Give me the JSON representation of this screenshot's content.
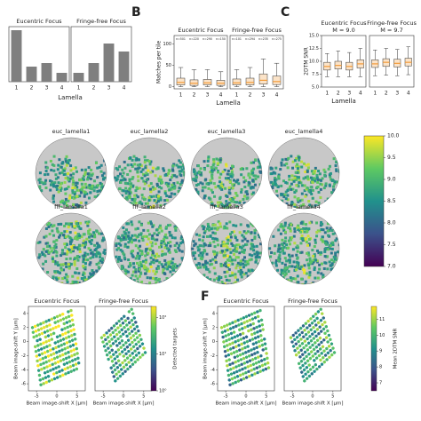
{
  "panel_letters": [
    "B",
    "C",
    "F"
  ],
  "chart_data": [
    {
      "type": "bar",
      "title": "Eucentric Focus",
      "xlabel": "Lamella",
      "categories": [
        "1",
        "2",
        "3",
        "4"
      ],
      "values": [
        58,
        17,
        21,
        10
      ],
      "color": "#7f7f7f",
      "ylim": [
        0,
        62
      ]
    },
    {
      "type": "bar",
      "title": "Fringe-free Focus",
      "categories": [
        "1",
        "2",
        "3",
        "4"
      ],
      "values": [
        10,
        21,
        43,
        34
      ],
      "color": "#7f7f7f",
      "ylim": [
        0,
        62
      ]
    },
    {
      "type": "box",
      "title": "Eucentric Focus",
      "ylabel": "Matches per tile",
      "xlabel": "Lamella",
      "categories": [
        "1",
        "2",
        "3",
        "4"
      ],
      "annotations": [
        "n=501",
        "n=220",
        "n=290",
        "n=150"
      ],
      "median": [
        10,
        8,
        9,
        8
      ],
      "q1": [
        4,
        3,
        4,
        3
      ],
      "q3": [
        20,
        16,
        17,
        15
      ],
      "whisker_low": [
        0,
        0,
        0,
        0
      ],
      "whisker_high": [
        45,
        40,
        40,
        35
      ],
      "color": "#fbe3c8",
      "median_color": "#f29b3a",
      "ylim": [
        -5,
        120
      ],
      "yticks": [
        0,
        50,
        100
      ]
    },
    {
      "type": "box",
      "title": "Fringe-free Focus",
      "categories": [
        "1",
        "2",
        "3",
        "4"
      ],
      "annotations": [
        "n=101",
        "n=294",
        "n=235",
        "n=275"
      ],
      "median": [
        9,
        10,
        15,
        12
      ],
      "q1": [
        4,
        4,
        6,
        5
      ],
      "q3": [
        18,
        20,
        30,
        25
      ],
      "whisker_low": [
        0,
        0,
        0,
        0
      ],
      "whisker_high": [
        40,
        45,
        65,
        55
      ],
      "color": "#fbe3c8",
      "median_color": "#f29b3a",
      "ylim": [
        -5,
        120
      ]
    },
    {
      "type": "box",
      "title": "Eucentric Focus",
      "subtitle": "M = 9.0",
      "ylabel": "2DTM SNR",
      "xlabel": "Lamella",
      "categories": [
        "1",
        "2",
        "3",
        "4"
      ],
      "median": [
        9.0,
        9.2,
        9.0,
        9.5
      ],
      "q1": [
        8.3,
        8.5,
        8.3,
        8.7
      ],
      "q3": [
        9.8,
        10,
        9.8,
        10.3
      ],
      "whisker_low": [
        7,
        7,
        7,
        7
      ],
      "whisker_high": [
        11.5,
        12,
        11.7,
        12.5
      ],
      "color": "#fbe3c8",
      "median_color": "#f29b3a",
      "ylim": [
        5,
        15
      ],
      "yticks": [
        {
          "value": 5,
          "label": "5.0"
        },
        7.5,
        {
          "value": 10,
          "label": "10.0"
        },
        12.5,
        {
          "value": 15,
          "label": "15.0"
        }
      ]
    },
    {
      "type": "box",
      "title": "Fringe-free Focus",
      "subtitle": "M = 9.7",
      "categories": [
        "1",
        "2",
        "3",
        "4"
      ],
      "median": [
        9.5,
        9.8,
        9.6,
        9.8
      ],
      "q1": [
        8.8,
        9,
        8.9,
        9.1
      ],
      "q3": [
        10.3,
        10.5,
        10.4,
        10.6
      ],
      "whisker_low": [
        7.2,
        7.3,
        7.2,
        7.4
      ],
      "whisker_high": [
        12.2,
        12.5,
        12.3,
        12.8
      ],
      "color": "#fbe3c8",
      "median_color": "#f29b3a",
      "ylim": [
        5,
        15
      ]
    },
    {
      "type": "heatmap",
      "labels": [
        "euc_lamella1",
        "euc_lamella2",
        "euc_lamella3",
        "euc_lamella4",
        "fff_lamella1",
        "fff_lamella2",
        "fff_lamella3",
        "fff_lamella4"
      ],
      "clim": [
        7,
        10
      ],
      "cticks": [
        {
          "value": 7,
          "label": "7.0"
        },
        7.5,
        {
          "value": 8,
          "label": "8.0"
        },
        8.5,
        {
          "value": 9,
          "label": "9.0"
        },
        9.5,
        {
          "value": 10,
          "label": "10.0"
        }
      ]
    },
    {
      "type": "hexbin",
      "titles": [
        "Eucentric Focus",
        "Fringe-free Focus"
      ],
      "xlabel": "Beam image-shift X [μm]",
      "ylabel": "Beam image-shift Y [μm]",
      "xlim": [
        -7,
        7
      ],
      "xticks": [
        -5,
        0,
        5
      ],
      "ylim": [
        -7,
        5
      ],
      "yticks": [
        4,
        2,
        0,
        -2,
        -4,
        -6
      ],
      "colorbar_label": "Detected targets",
      "clim": [
        0,
        2.3
      ],
      "cticks": [
        {
          "value": 0,
          "label": "10⁰"
        },
        {
          "value": 1,
          "label": "10¹"
        },
        {
          "value": 2,
          "label": "10²"
        }
      ]
    },
    {
      "type": "hexbin",
      "titles": [
        "Eucentric Focus",
        "Fringe-free Focus"
      ],
      "xlabel": "Beam image-shift X [μm]",
      "ylabel": "Beam image-shift Y [μm]",
      "xlim": [
        -7,
        7
      ],
      "xticks": [
        -5,
        0,
        5
      ],
      "ylim": [
        -7,
        5
      ],
      "yticks": [
        4,
        2,
        0,
        -2,
        -4,
        -6
      ],
      "colorbar_label": "Mean 2DTM SNR",
      "clim": [
        6.5,
        11.8
      ],
      "cticks": [
        7,
        8,
        9,
        10,
        11
      ]
    }
  ]
}
